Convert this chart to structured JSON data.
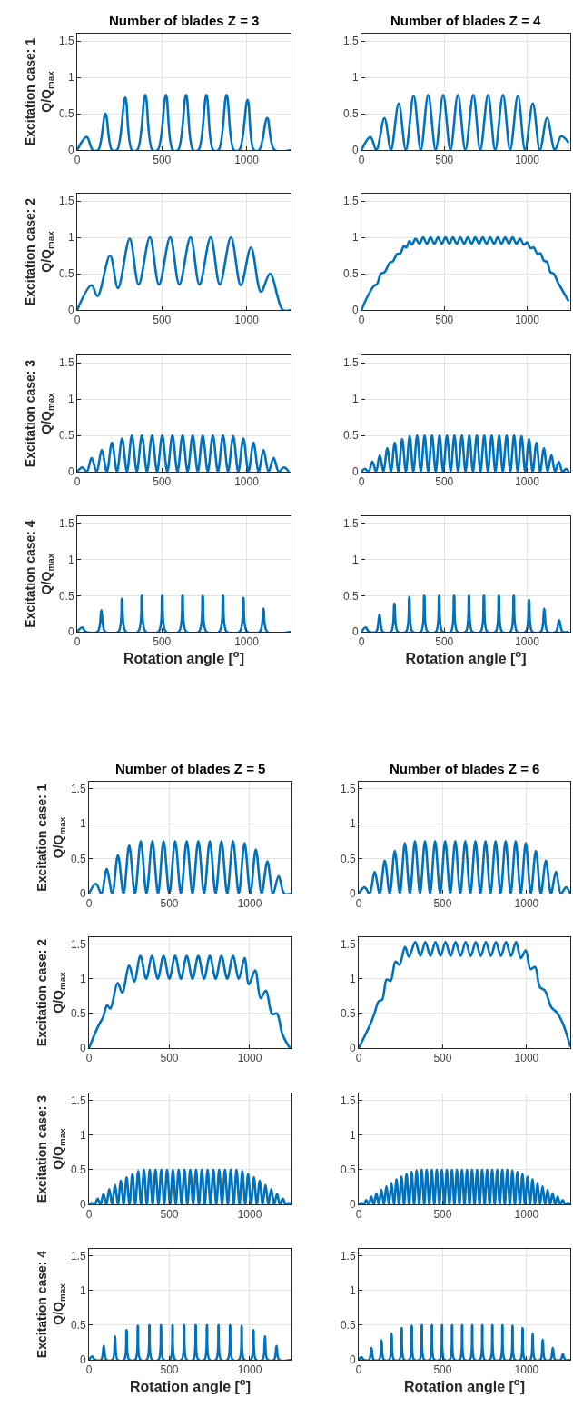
{
  "chart_data": [
    {
      "type": "line",
      "title": "Number of blades Z = 3",
      "ylabel": "Excitation case: 1\nQ/Q$_{max}$",
      "xlim": [
        0,
        1260
      ],
      "ylim": [
        0,
        1.6
      ],
      "xticks": [
        0,
        500,
        1000
      ],
      "yticks": [
        0,
        0.5,
        1,
        1.5
      ],
      "grid": true,
      "x": [
        0,
        56,
        92,
        124,
        167,
        205,
        235,
        284,
        323,
        355,
        402,
        444,
        476,
        524,
        564,
        596,
        643,
        684,
        716,
        763,
        803,
        835,
        882,
        925,
        957,
        1006,
        1043,
        1075,
        1122,
        1165,
        1260
      ],
      "series": [
        {
          "color": "#0072bd",
          "values": [
            0,
            0.18,
            0,
            0,
            0.5,
            0,
            0,
            0.72,
            0,
            0,
            0.76,
            0,
            0,
            0.76,
            0,
            0,
            0.76,
            0,
            0,
            0.76,
            0,
            0,
            0.76,
            0,
            0,
            0.69,
            0,
            0,
            0.44,
            0,
            0
          ]
        }
      ]
    },
    {
      "type": "line",
      "title": "Number of blades Z = 4",
      "xlim": [
        0,
        1260
      ],
      "ylim": [
        0,
        1.6
      ],
      "xticks": [
        0,
        500,
        1000
      ],
      "yticks": [
        0,
        0.5,
        1,
        1.5
      ],
      "grid": true,
      "x": [
        0,
        54,
        90,
        139,
        178,
        225,
        268,
        315,
        358,
        403,
        448,
        493,
        537,
        582,
        627,
        675,
        717,
        764,
        807,
        854,
        897,
        944,
        987,
        1034,
        1077,
        1120,
        1167,
        1206,
        1250
      ],
      "series": [
        {
          "color": "#0072bd",
          "values": [
            0,
            0.18,
            0,
            0.44,
            0,
            0.64,
            0,
            0.75,
            0,
            0.76,
            0,
            0.76,
            0,
            0.76,
            0,
            0.76,
            0,
            0.76,
            0,
            0.76,
            0,
            0.75,
            0,
            0.64,
            0,
            0.44,
            0,
            0.19,
            0.1
          ]
        }
      ]
    },
    {
      "type": "line",
      "ylabel": "Excitation case: 2\nQ/Q$_{max}$",
      "xlim": [
        0,
        1260
      ],
      "ylim": [
        0,
        1.6
      ],
      "xticks": [
        0,
        500,
        1000
      ],
      "yticks": [
        0,
        0.5,
        1,
        1.5
      ],
      "grid": true,
      "x": [
        0,
        85,
        120,
        194,
        241,
        310,
        363,
        429,
        483,
        549,
        603,
        669,
        722,
        788,
        842,
        908,
        966,
        1026,
        1085,
        1139,
        1214,
        1260
      ],
      "series": [
        {
          "color": "#0072bd",
          "values": [
            0,
            0.34,
            0.19,
            0.75,
            0.3,
            0.98,
            0.35,
            1.0,
            0.35,
            1.0,
            0.35,
            1.0,
            0.35,
            1.0,
            0.35,
            1.0,
            0.34,
            0.86,
            0.25,
            0.5,
            0,
            0
          ]
        }
      ]
    },
    {
      "type": "line",
      "xlim": [
        0,
        1260
      ],
      "ylim": [
        0,
        1.6
      ],
      "xticks": [
        0,
        500,
        1000
      ],
      "yticks": [
        0,
        0.5,
        1,
        1.5
      ],
      "grid": true,
      "x": [
        0,
        40,
        75,
        95,
        118,
        140,
        171,
        190,
        215,
        235,
        257,
        270,
        290,
        305,
        327,
        350,
        372,
        395,
        417,
        440,
        462,
        485,
        507,
        530,
        552,
        575,
        597,
        620,
        642,
        665,
        687,
        710,
        732,
        755,
        777,
        800,
        822,
        845,
        867,
        890,
        912,
        935,
        957,
        980,
        1000,
        1020,
        1040,
        1062,
        1080,
        1100,
        1120,
        1140,
        1160,
        1185,
        1205,
        1250
      ],
      "series": [
        {
          "color": "#0072bd",
          "values": [
            0,
            0.2,
            0.33,
            0.36,
            0.5,
            0.52,
            0.65,
            0.67,
            0.77,
            0.78,
            0.88,
            0.86,
            0.95,
            0.9,
            0.98,
            0.91,
            1.0,
            0.91,
            1.0,
            0.91,
            1.0,
            0.91,
            1.0,
            0.91,
            1.0,
            0.91,
            1.0,
            0.91,
            1.0,
            0.91,
            1.0,
            0.91,
            1.0,
            0.91,
            1.0,
            0.91,
            1.0,
            0.91,
            1.0,
            0.91,
            1.0,
            0.91,
            0.98,
            0.9,
            0.93,
            0.85,
            0.86,
            0.77,
            0.78,
            0.68,
            0.66,
            0.52,
            0.5,
            0.38,
            0.3,
            0.12
          ]
        }
      ]
    },
    {
      "type": "line",
      "ylabel": "Excitation case: 3\nQ/Q$_{max}$",
      "xlim": [
        0,
        1260
      ],
      "ylim": [
        0,
        1.6
      ],
      "xticks": [
        0,
        500,
        1000
      ],
      "yticks": [
        0,
        0.5,
        1,
        1.5
      ],
      "grid": true,
      "x": [
        0,
        30,
        57,
        85,
        115,
        145,
        175,
        205,
        235,
        265,
        294,
        323,
        352,
        382,
        412,
        442,
        472,
        502,
        532,
        562,
        592,
        622,
        652,
        682,
        712,
        741,
        771,
        801,
        831,
        861,
        891,
        921,
        951,
        981,
        1011,
        1041,
        1071,
        1100,
        1130,
        1160,
        1190,
        1220,
        1250
      ],
      "series": [
        {
          "color": "#0072bd",
          "values": [
            0,
            0.06,
            0,
            0.19,
            0,
            0.3,
            0,
            0.4,
            0,
            0.46,
            0,
            0.5,
            0,
            0.5,
            0,
            0.5,
            0,
            0.5,
            0,
            0.5,
            0,
            0.5,
            0,
            0.5,
            0,
            0.5,
            0,
            0.5,
            0,
            0.5,
            0,
            0.49,
            0,
            0.46,
            0,
            0.4,
            0,
            0.3,
            0,
            0.19,
            0,
            0.06,
            0
          ]
        }
      ]
    },
    {
      "type": "line",
      "xlim": [
        0,
        1260
      ],
      "ylim": [
        0,
        1.6
      ],
      "xticks": [
        0,
        500,
        1000
      ],
      "yticks": [
        0,
        0.5,
        1,
        1.5
      ],
      "grid": true,
      "x": [
        0,
        21,
        43,
        66,
        88,
        111,
        133,
        156,
        178,
        201,
        223,
        246,
        268,
        291,
        313,
        336,
        358,
        381,
        403,
        426,
        448,
        471,
        493,
        516,
        538,
        561,
        583,
        606,
        628,
        651,
        673,
        696,
        718,
        741,
        763,
        786,
        808,
        831,
        853,
        876,
        898,
        921,
        943,
        966,
        988,
        1011,
        1033,
        1056,
        1078,
        1101,
        1123,
        1146,
        1168,
        1191,
        1213,
        1236,
        1250
      ],
      "series": [
        {
          "color": "#0072bd",
          "values": [
            0,
            0.04,
            0,
            0.14,
            0,
            0.23,
            0,
            0.32,
            0,
            0.4,
            0,
            0.45,
            0,
            0.49,
            0,
            0.5,
            0,
            0.5,
            0,
            0.5,
            0,
            0.5,
            0,
            0.5,
            0,
            0.5,
            0,
            0.5,
            0,
            0.5,
            0,
            0.5,
            0,
            0.5,
            0,
            0.5,
            0,
            0.5,
            0,
            0.5,
            0,
            0.5,
            0,
            0.49,
            0,
            0.45,
            0,
            0.4,
            0,
            0.32,
            0,
            0.23,
            0,
            0.14,
            0,
            0.04,
            0
          ]
        }
      ]
    },
    {
      "type": "line",
      "ylabel": "Excitation case: 4\nQ/Q$_{max}$",
      "xlabel": "Rotation angle [$^{o}$]",
      "xlim": [
        0,
        1260
      ],
      "ylim": [
        0,
        1.6
      ],
      "xticks": [
        0,
        500,
        1000
      ],
      "yticks": [
        0,
        0.5,
        1,
        1.5
      ],
      "grid": true,
      "x": [
        0,
        30,
        50,
        121,
        143,
        165,
        243,
        265,
        287,
        360,
        382,
        404,
        480,
        502,
        524,
        600,
        622,
        644,
        719,
        741,
        763,
        839,
        861,
        883,
        959,
        981,
        1003,
        1078,
        1100,
        1122,
        1260
      ],
      "series": [
        {
          "color": "#0072bd",
          "values": [
            0,
            0.06,
            0,
            0,
            0.3,
            0,
            0,
            0.46,
            0,
            0,
            0.5,
            0,
            0,
            0.5,
            0,
            0,
            0.5,
            0,
            0,
            0.5,
            0,
            0,
            0.5,
            0,
            0,
            0.47,
            0,
            0,
            0.32,
            0,
            0
          ]
        }
      ]
    },
    {
      "type": "line",
      "xlabel": "Rotation angle [$^{o}$]",
      "xlim": [
        0,
        1260
      ],
      "ylim": [
        0,
        1.6
      ],
      "xticks": [
        0,
        500,
        1000
      ],
      "yticks": [
        0,
        0.5,
        1,
        1.5
      ],
      "grid": true,
      "x": [
        0,
        26,
        46,
        89,
        109,
        129,
        179,
        199,
        219,
        269,
        289,
        309,
        359,
        379,
        399,
        449,
        469,
        489,
        539,
        559,
        579,
        629,
        649,
        669,
        719,
        739,
        759,
        809,
        829,
        849,
        899,
        919,
        939,
        991,
        1011,
        1031,
        1083,
        1103,
        1123,
        1173,
        1193,
        1213,
        1250
      ],
      "series": [
        {
          "color": "#0072bd",
          "values": [
            0,
            0.06,
            0,
            0,
            0.24,
            0,
            0,
            0.39,
            0,
            0,
            0.48,
            0,
            0,
            0.5,
            0,
            0,
            0.5,
            0,
            0,
            0.5,
            0,
            0,
            0.5,
            0,
            0,
            0.5,
            0,
            0,
            0.5,
            0,
            0,
            0.5,
            0,
            0,
            0.44,
            0,
            0,
            0.32,
            0,
            0,
            0.16,
            0,
            0
          ]
        }
      ]
    },
    {
      "type": "line",
      "title": "Number of blades Z = 5",
      "ylabel": "Excitation case: 1\nQ/Q$_{max}$",
      "xlim": [
        0,
        1260
      ],
      "ylim": [
        0,
        1.6
      ],
      "xticks": [
        0,
        500,
        1000
      ],
      "yticks": [
        0,
        0.5,
        1,
        1.5
      ],
      "grid": true,
      "x": [
        0,
        43,
        77,
        110,
        145,
        180,
        215,
        250,
        286,
        322,
        358,
        394,
        430,
        464,
        500,
        536,
        572,
        608,
        644,
        680,
        716,
        752,
        788,
        824,
        860,
        896,
        932,
        968,
        1004,
        1038,
        1074,
        1110,
        1145,
        1180,
        1215,
        1260
      ],
      "series": [
        {
          "color": "#0072bd",
          "values": [
            0,
            0.14,
            0,
            0.35,
            0,
            0.55,
            0,
            0.69,
            0,
            0.75,
            0,
            0.75,
            0,
            0.75,
            0,
            0.75,
            0,
            0.75,
            0,
            0.75,
            0,
            0.75,
            0,
            0.75,
            0,
            0.75,
            0,
            0.72,
            0,
            0.63,
            0,
            0.46,
            0,
            0.25,
            0,
            0
          ]
        }
      ]
    },
    {
      "type": "line",
      "title": "Number of blades Z = 6",
      "xlim": [
        0,
        1260
      ],
      "ylim": [
        0,
        1.6
      ],
      "xticks": [
        0,
        500,
        1000
      ],
      "yticks": [
        0,
        0.5,
        1,
        1.5
      ],
      "grid": true,
      "x": [
        0,
        35,
        65,
        95,
        125,
        155,
        185,
        215,
        245,
        275,
        305,
        335,
        365,
        395,
        425,
        455,
        485,
        515,
        545,
        575,
        605,
        635,
        665,
        695,
        725,
        755,
        785,
        815,
        845,
        875,
        905,
        935,
        965,
        995,
        1025,
        1055,
        1085,
        1115,
        1145,
        1175,
        1205,
        1235,
        1260
      ],
      "series": [
        {
          "color": "#0072bd",
          "values": [
            0,
            0.09,
            0,
            0.31,
            0,
            0.47,
            0,
            0.61,
            0,
            0.72,
            0,
            0.75,
            0,
            0.75,
            0,
            0.75,
            0,
            0.75,
            0,
            0.75,
            0,
            0.75,
            0,
            0.75,
            0,
            0.75,
            0,
            0.75,
            0,
            0.75,
            0,
            0.75,
            0,
            0.72,
            0,
            0.61,
            0,
            0.47,
            0,
            0.31,
            0,
            0.09,
            0
          ]
        }
      ]
    },
    {
      "type": "line",
      "ylabel": "Excitation case: 2\nQ/Q$_{max}$",
      "xlim": [
        0,
        1260
      ],
      "ylim": [
        0,
        1.6
      ],
      "xticks": [
        0,
        500,
        1000
      ],
      "yticks": [
        0,
        0.5,
        1,
        1.5
      ],
      "grid": true,
      "x": [
        0,
        54,
        88,
        113,
        133,
        178,
        207,
        250,
        282,
        320,
        356,
        392,
        428,
        464,
        500,
        536,
        572,
        608,
        644,
        680,
        716,
        752,
        788,
        824,
        860,
        896,
        932,
        968,
        995,
        1034,
        1068,
        1101,
        1140,
        1169,
        1203,
        1250
      ],
      "series": [
        {
          "color": "#0072bd",
          "values": [
            0,
            0.3,
            0.45,
            0.62,
            0.57,
            0.94,
            0.8,
            1.19,
            0.96,
            1.33,
            1.0,
            1.33,
            1.0,
            1.33,
            1.0,
            1.33,
            1.0,
            1.33,
            1.0,
            1.33,
            1.0,
            1.33,
            1.0,
            1.33,
            1.0,
            1.33,
            1.0,
            1.3,
            0.92,
            1.12,
            0.72,
            0.83,
            0.49,
            0.5,
            0.2,
            0
          ]
        }
      ]
    },
    {
      "type": "line",
      "xlim": [
        0,
        1260
      ],
      "ylim": [
        0,
        1.6
      ],
      "xticks": [
        0,
        500,
        1000
      ],
      "yticks": [
        0,
        0.5,
        1,
        1.5
      ],
      "grid": true,
      "x": [
        0,
        72,
        95,
        118,
        140,
        167,
        190,
        219,
        242,
        276,
        299,
        337,
        367,
        397,
        427,
        457,
        487,
        517,
        547,
        577,
        607,
        637,
        667,
        697,
        727,
        757,
        787,
        817,
        847,
        877,
        907,
        937,
        966,
        995,
        1023,
        1050,
        1079,
        1109,
        1147,
        1181,
        1215,
        1260
      ],
      "series": [
        {
          "color": "#0072bd",
          "values": [
            0,
            0.36,
            0.51,
            0.67,
            0.7,
            0.99,
            0.97,
            1.25,
            1.2,
            1.46,
            1.32,
            1.53,
            1.33,
            1.53,
            1.33,
            1.53,
            1.33,
            1.53,
            1.33,
            1.53,
            1.33,
            1.53,
            1.33,
            1.53,
            1.33,
            1.53,
            1.33,
            1.53,
            1.33,
            1.53,
            1.33,
            1.53,
            1.3,
            1.41,
            1.14,
            1.17,
            0.88,
            0.83,
            0.59,
            0.51,
            0.36,
            0.02
          ]
        }
      ]
    },
    {
      "type": "line",
      "ylabel": "Excitation case: 3\nQ/Q$_{max}$",
      "xlim": [
        0,
        1260
      ],
      "ylim": [
        0,
        1.6
      ],
      "xticks": [
        0,
        500,
        1000
      ],
      "yticks": [
        0,
        0.5,
        1,
        1.5
      ],
      "grid": true,
      "x": [
        0,
        18,
        36,
        54,
        72,
        90,
        108,
        126,
        144,
        162,
        180,
        198,
        216,
        234,
        252,
        270,
        288,
        306,
        324,
        342,
        360,
        378,
        396,
        414,
        432,
        450,
        468,
        486,
        504,
        522,
        540,
        558,
        576,
        594,
        612,
        630,
        648,
        666,
        684,
        702,
        720,
        738,
        756,
        774,
        792,
        810,
        828,
        846,
        864,
        882,
        900,
        918,
        936,
        954,
        972,
        990,
        1008,
        1026,
        1044,
        1062,
        1080,
        1098,
        1116,
        1134,
        1152,
        1170,
        1188,
        1206,
        1224,
        1242,
        1260
      ],
      "series": [
        {
          "color": "#0072bd",
          "values": [
            0,
            0.02,
            0,
            0.08,
            0,
            0.15,
            0,
            0.22,
            0,
            0.28,
            0,
            0.34,
            0,
            0.39,
            0,
            0.44,
            0,
            0.48,
            0,
            0.5,
            0,
            0.5,
            0,
            0.5,
            0,
            0.5,
            0,
            0.5,
            0,
            0.5,
            0,
            0.5,
            0,
            0.5,
            0,
            0.5,
            0,
            0.5,
            0,
            0.5,
            0,
            0.5,
            0,
            0.5,
            0,
            0.5,
            0,
            0.5,
            0,
            0.5,
            0,
            0.5,
            0,
            0.48,
            0,
            0.44,
            0,
            0.39,
            0,
            0.34,
            0,
            0.28,
            0,
            0.22,
            0,
            0.15,
            0,
            0.08,
            0,
            0.02,
            0
          ]
        }
      ]
    },
    {
      "type": "line",
      "xlim": [
        0,
        1260
      ],
      "ylim": [
        0,
        1.6
      ],
      "xticks": [
        0,
        500,
        1000
      ],
      "yticks": [
        0,
        0.5,
        1,
        1.5
      ],
      "grid": true,
      "x": [
        0,
        15,
        30,
        45,
        60,
        75,
        90,
        105,
        120,
        135,
        150,
        165,
        180,
        195,
        210,
        225,
        240,
        255,
        270,
        285,
        300,
        315,
        330,
        345,
        360,
        375,
        390,
        405,
        420,
        435,
        450,
        465,
        480,
        495,
        510,
        525,
        540,
        555,
        570,
        585,
        600,
        615,
        630,
        645,
        660,
        675,
        690,
        705,
        720,
        735,
        750,
        765,
        780,
        795,
        810,
        825,
        840,
        855,
        870,
        885,
        900,
        915,
        930,
        945,
        960,
        975,
        990,
        1005,
        1020,
        1035,
        1050,
        1065,
        1080,
        1095,
        1110,
        1125,
        1140,
        1155,
        1170,
        1185,
        1200,
        1215,
        1230,
        1245,
        1260
      ],
      "series": [
        {
          "color": "#0072bd",
          "values": [
            0,
            0.02,
            0,
            0.06,
            0,
            0.11,
            0,
            0.16,
            0,
            0.21,
            0,
            0.26,
            0,
            0.31,
            0,
            0.36,
            0,
            0.4,
            0,
            0.44,
            0,
            0.47,
            0,
            0.49,
            0,
            0.5,
            0,
            0.5,
            0,
            0.5,
            0,
            0.5,
            0,
            0.5,
            0,
            0.5,
            0,
            0.5,
            0,
            0.5,
            0,
            0.5,
            0,
            0.5,
            0,
            0.5,
            0,
            0.5,
            0,
            0.5,
            0,
            0.5,
            0,
            0.5,
            0,
            0.5,
            0,
            0.5,
            0,
            0.5,
            0,
            0.49,
            0,
            0.47,
            0,
            0.44,
            0,
            0.4,
            0,
            0.36,
            0,
            0.31,
            0,
            0.26,
            0,
            0.21,
            0,
            0.16,
            0,
            0.11,
            0,
            0.06,
            0,
            0.02,
            0
          ]
        }
      ]
    },
    {
      "type": "line",
      "ylabel": "Excitation case: 4\nQ/Q$_{max}$",
      "xlabel": "Rotation angle [$^{o}$]",
      "xlim": [
        0,
        1260
      ],
      "ylim": [
        0,
        1.6
      ],
      "xticks": [
        0,
        500,
        1000
      ],
      "yticks": [
        0,
        0.5,
        1,
        1.5
      ],
      "grid": true,
      "x": [
        0,
        20,
        36,
        76,
        92,
        108,
        146,
        162,
        178,
        218,
        234,
        250,
        288,
        304,
        320,
        360,
        376,
        392,
        432,
        448,
        464,
        504,
        520,
        536,
        576,
        592,
        608,
        648,
        664,
        680,
        718,
        734,
        750,
        790,
        806,
        822,
        862,
        878,
        894,
        934,
        950,
        966,
        1007,
        1023,
        1039,
        1079,
        1095,
        1111,
        1151,
        1167,
        1183,
        1260
      ],
      "series": [
        {
          "color": "#0072bd",
          "values": [
            0,
            0.05,
            0,
            0,
            0.2,
            0,
            0,
            0.34,
            0,
            0,
            0.43,
            0,
            0,
            0.49,
            0,
            0,
            0.5,
            0,
            0,
            0.5,
            0,
            0,
            0.5,
            0,
            0,
            0.5,
            0,
            0,
            0.5,
            0,
            0,
            0.5,
            0,
            0,
            0.5,
            0,
            0,
            0.5,
            0,
            0,
            0.49,
            0,
            0,
            0.43,
            0,
            0,
            0.34,
            0,
            0,
            0.2,
            0,
            0
          ]
        }
      ]
    },
    {
      "type": "line",
      "xlabel": "Rotation angle [$^{o}$]",
      "xlim": [
        0,
        1260
      ],
      "ylim": [
        0,
        1.6
      ],
      "xticks": [
        0,
        500,
        1000
      ],
      "yticks": [
        0,
        0.5,
        1,
        1.5
      ],
      "grid": true,
      "x": [
        0,
        16,
        30,
        62,
        76,
        90,
        122,
        136,
        150,
        182,
        196,
        210,
        242,
        256,
        270,
        302,
        316,
        330,
        362,
        376,
        390,
        422,
        436,
        450,
        482,
        496,
        510,
        542,
        556,
        570,
        602,
        616,
        630,
        662,
        676,
        690,
        722,
        736,
        750,
        782,
        796,
        810,
        842,
        856,
        870,
        902,
        916,
        930,
        962,
        976,
        990,
        1022,
        1036,
        1050,
        1082,
        1096,
        1110,
        1142,
        1156,
        1170,
        1202,
        1216,
        1230,
        1260
      ],
      "series": [
        {
          "color": "#0072bd",
          "values": [
            0,
            0.04,
            0,
            0,
            0.17,
            0,
            0,
            0.28,
            0,
            0,
            0.38,
            0,
            0,
            0.46,
            0,
            0,
            0.49,
            0,
            0,
            0.5,
            0,
            0,
            0.5,
            0,
            0,
            0.5,
            0,
            0,
            0.5,
            0,
            0,
            0.5,
            0,
            0,
            0.5,
            0,
            0,
            0.5,
            0,
            0,
            0.5,
            0,
            0,
            0.5,
            0,
            0,
            0.49,
            0,
            0,
            0.46,
            0,
            0,
            0.38,
            0,
            0,
            0.29,
            0,
            0,
            0.17,
            0,
            0,
            0.08,
            0,
            0
          ]
        }
      ]
    }
  ]
}
